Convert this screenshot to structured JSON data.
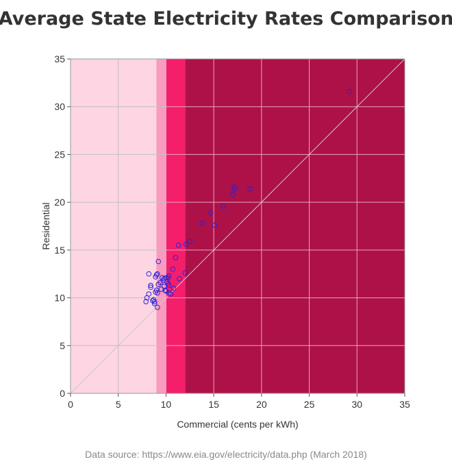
{
  "chart_data": {
    "type": "scatter",
    "title": "Average State Electricity Rates Comparison",
    "xlabel": "Commercial (cents per kWh)",
    "ylabel": "Residential",
    "xlim": [
      0,
      35
    ],
    "ylim": [
      0,
      35
    ],
    "xticks": [
      "0",
      "5",
      "10",
      "15",
      "20",
      "25",
      "30",
      "35"
    ],
    "yticks": [
      "0",
      "5",
      "10",
      "15",
      "20",
      "25",
      "30",
      "35"
    ],
    "grid": true,
    "reference_line": {
      "from": [
        0,
        0
      ],
      "to": [
        35,
        35
      ],
      "color": "#c8c8c8"
    },
    "background_bands": [
      {
        "from": 0,
        "to": 9,
        "color": "#fdd5e3"
      },
      {
        "from": 9,
        "to": 10,
        "color": "#f99bbe"
      },
      {
        "from": 10,
        "to": 12,
        "color": "#f41e6b"
      },
      {
        "from": 12,
        "to": 35,
        "color": "#ad1147"
      }
    ],
    "marker_color": "#2b22d8",
    "points": [
      [
        29.2,
        31.6
      ],
      [
        17.1,
        21.6
      ],
      [
        17.2,
        21.4
      ],
      [
        18.8,
        21.4
      ],
      [
        17.0,
        20.8
      ],
      [
        16.0,
        19.6
      ],
      [
        14.7,
        18.9
      ],
      [
        13.8,
        17.8
      ],
      [
        15.1,
        17.6
      ],
      [
        12.5,
        15.9
      ],
      [
        12.1,
        15.6
      ],
      [
        11.3,
        15.5
      ],
      [
        11.0,
        14.2
      ],
      [
        9.2,
        13.8
      ],
      [
        10.7,
        13.0
      ],
      [
        12.0,
        12.6
      ],
      [
        8.2,
        12.5
      ],
      [
        9.1,
        12.5
      ],
      [
        8.9,
        12.2
      ],
      [
        9.0,
        12.4
      ],
      [
        10.3,
        12.3
      ],
      [
        10.2,
        12.1
      ],
      [
        10.0,
        12.1
      ],
      [
        9.8,
        12.0
      ],
      [
        9.6,
        12.1
      ],
      [
        11.4,
        12.0
      ],
      [
        9.7,
        11.8
      ],
      [
        10.1,
        11.7
      ],
      [
        9.4,
        11.6
      ],
      [
        9.2,
        11.4
      ],
      [
        10.2,
        11.5
      ],
      [
        10.3,
        11.3
      ],
      [
        8.4,
        11.3
      ],
      [
        8.4,
        11.1
      ],
      [
        9.8,
        11.2
      ],
      [
        10.8,
        11.0
      ],
      [
        9.5,
        10.9
      ],
      [
        9.9,
        10.8
      ],
      [
        10.0,
        10.7
      ],
      [
        9.0,
        10.8
      ],
      [
        10.3,
        10.5
      ],
      [
        8.9,
        10.6
      ],
      [
        9.1,
        10.5
      ],
      [
        10.5,
        10.4
      ],
      [
        8.2,
        10.4
      ],
      [
        8.0,
        10.0
      ],
      [
        8.7,
        9.8
      ],
      [
        8.6,
        9.7
      ],
      [
        8.8,
        9.6
      ],
      [
        7.9,
        9.6
      ],
      [
        8.8,
        9.4
      ],
      [
        9.1,
        9.0
      ]
    ]
  },
  "footer": {
    "source": "Data source: https://www.eia.gov/electricity/data.php (March 2018)"
  }
}
